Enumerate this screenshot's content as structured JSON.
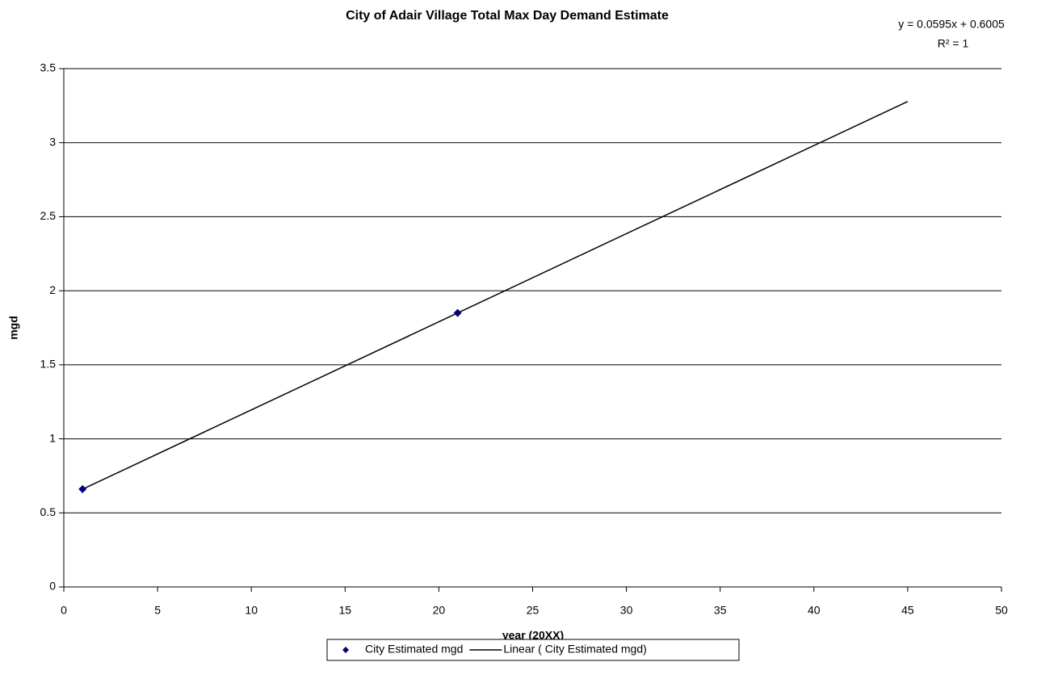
{
  "chart_data": {
    "type": "scatter",
    "title": "City of Adair Village Total Max Day Demand Estimate",
    "annotations": [
      "y = 0.0595x + 0.6005",
      "R² = 1"
    ],
    "x_label": "year (20XX)",
    "y_label": "mgd",
    "series": [
      {
        "name": "City Estimated mgd",
        "color": "#000080",
        "mode": "markers",
        "x": [
          1,
          21
        ],
        "values": [
          0.66,
          1.85
        ]
      },
      {
        "name": "Linear ( City Estimated mgd)",
        "color": "#000000",
        "mode": "line",
        "x": [
          1,
          45
        ],
        "values": [
          0.66,
          3.278
        ]
      }
    ],
    "xlim": [
      0,
      50
    ],
    "xticks": [
      0,
      5,
      10,
      15,
      20,
      25,
      30,
      35,
      40,
      45,
      50
    ],
    "ylim": [
      0,
      3.5
    ],
    "yticks": [
      0,
      0.5,
      1,
      1.5,
      2,
      2.5,
      3,
      3.5
    ],
    "grid": true,
    "legend": "bottom"
  }
}
